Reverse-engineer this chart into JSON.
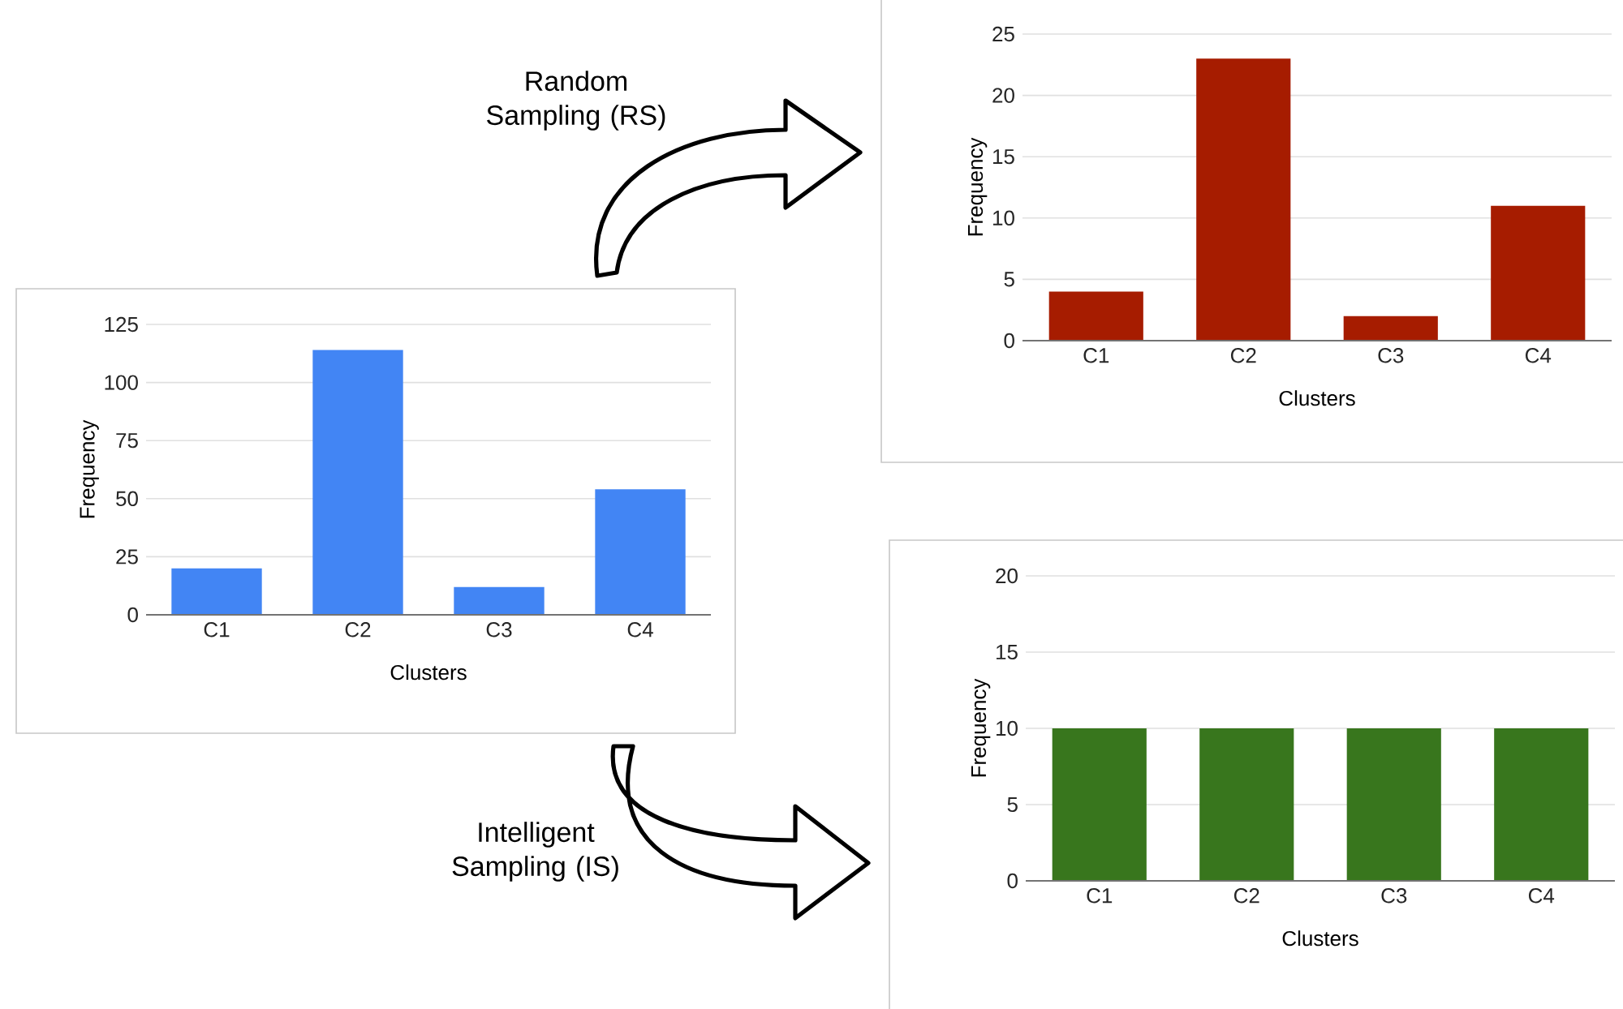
{
  "chart_data": [
    {
      "type": "bar",
      "categories": [
        "C1",
        "C2",
        "C3",
        "C4"
      ],
      "values": [
        20,
        114,
        12,
        54
      ],
      "color": "#4285f4",
      "xlabel": "Clusters",
      "ylabel": "Frequency",
      "ylim": [
        0,
        125
      ],
      "yticks": [
        0,
        25,
        50,
        75,
        100,
        125
      ],
      "grid": "y"
    },
    {
      "type": "bar",
      "categories": [
        "C1",
        "C2",
        "C3",
        "C4"
      ],
      "values": [
        4,
        23,
        2,
        11
      ],
      "color": "#a61c00",
      "xlabel": "Clusters",
      "ylabel": "Frequency",
      "ylim": [
        0,
        25
      ],
      "yticks": [
        0,
        5,
        10,
        15,
        20,
        25
      ],
      "grid": "y",
      "annotations": [
        "Random Sampling (RS)"
      ]
    },
    {
      "type": "bar",
      "categories": [
        "C1",
        "C2",
        "C3",
        "C4"
      ],
      "values": [
        10,
        10,
        10,
        10
      ],
      "color": "#38761d",
      "xlabel": "Clusters",
      "ylabel": "Frequency",
      "ylim": [
        0,
        20
      ],
      "yticks": [
        0,
        5,
        10,
        15,
        20
      ],
      "grid": "y",
      "annotations": [
        "Intelligent Sampling (IS)"
      ]
    }
  ]
}
